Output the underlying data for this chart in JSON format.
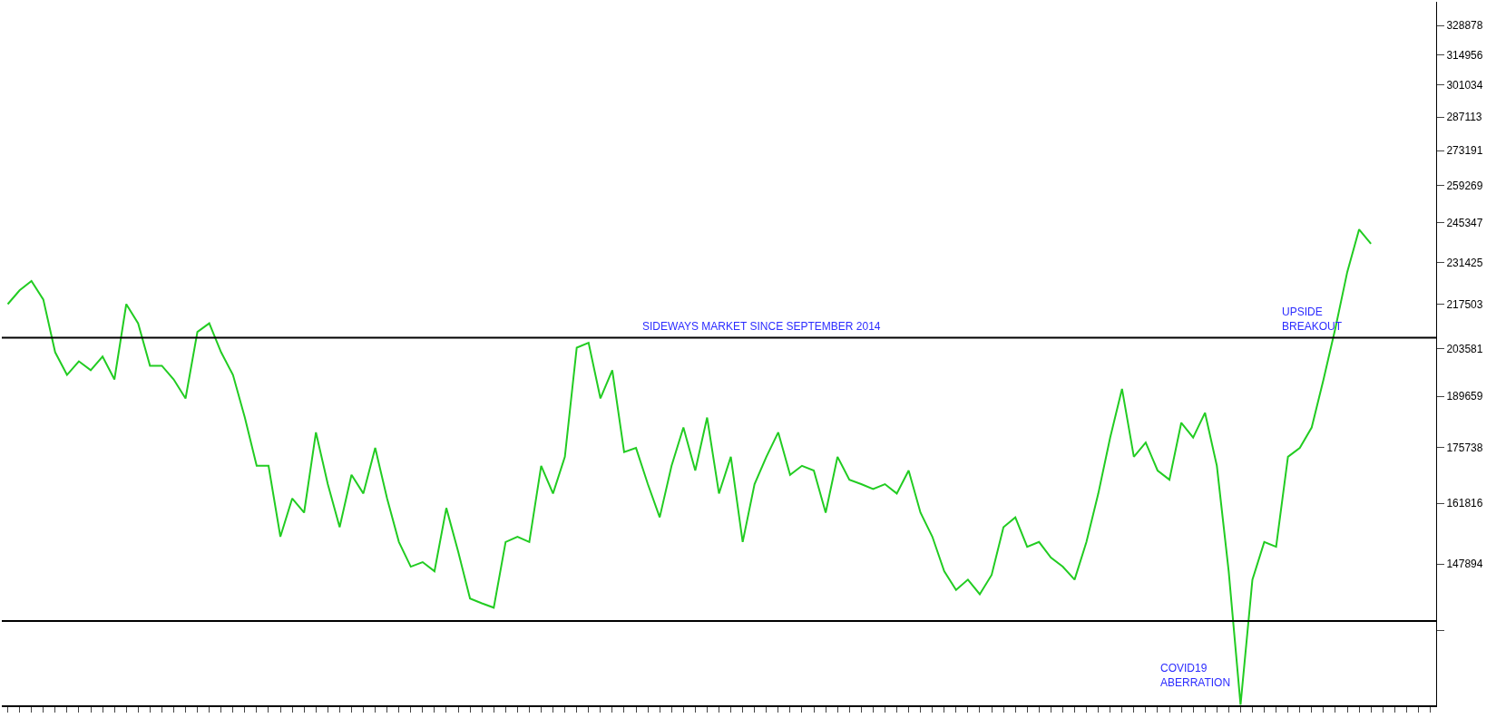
{
  "chart_data": {
    "type": "line",
    "log": true,
    "tick_labels": "y",
    "marker": "none",
    "categories": [
      null,
      null,
      null,
      null,
      null,
      null,
      null,
      null,
      null,
      null,
      null,
      null,
      null,
      null,
      null,
      null,
      null,
      null,
      null,
      null,
      null,
      null,
      null,
      null,
      null,
      null,
      null,
      null,
      null,
      null,
      null,
      null,
      null,
      null,
      null,
      null,
      null,
      null,
      null,
      null,
      null,
      null,
      null,
      null,
      null,
      null,
      null,
      null,
      null,
      null,
      null,
      null,
      null,
      null,
      null,
      null,
      null,
      null,
      null,
      null,
      null,
      null,
      null,
      null,
      null,
      null,
      null,
      null,
      null,
      null,
      null,
      null,
      null,
      null,
      null,
      null,
      null,
      null,
      null,
      null,
      null,
      null,
      null,
      null,
      null,
      null,
      null,
      null,
      null,
      null,
      null,
      null,
      null,
      null,
      null,
      null,
      null,
      null,
      null,
      null,
      null,
      null,
      null,
      null,
      null,
      null,
      null,
      null,
      null,
      null,
      null,
      null,
      null,
      null,
      null,
      null,
      null,
      null,
      null,
      null,
      null
    ],
    "series": [
      {
        "color": "#22cc22",
        "values": [
          217500,
          222000,
          225100,
          219000,
          202500,
          195800,
          199800,
          197200,
          201200,
          194500,
          217500,
          211400,
          198500,
          198500,
          194500,
          189100,
          208700,
          211400,
          202500,
          195800,
          183800,
          171100,
          171100,
          154000,
          163000,
          159600,
          179800,
          166500,
          156200,
          168800,
          164200,
          175700,
          163000,
          152800,
          147300,
          148300,
          146300,
          160700,
          150600,
          140500,
          139500,
          138600,
          152800,
          154000,
          152800,
          171100,
          164200,
          173400,
          203900,
          205400,
          189100,
          197200,
          174600,
          175700,
          166500,
          158500,
          171100,
          181100,
          169900,
          183800,
          164200,
          173400,
          152800,
          166500,
          173400,
          179800,
          168800,
          171100,
          169900,
          159600,
          173400,
          167600,
          166500,
          165300,
          166500,
          164200,
          169900,
          159600,
          154000,
          146300,
          142300,
          144500,
          141400,
          145500,
          156200,
          158500,
          151700,
          152800,
          149300,
          147300,
          144500,
          152800,
          164200,
          178400,
          191800,
          173400,
          177100,
          169900,
          167600,
          182400,
          178400,
          185100,
          171100,
          146300,
          120000,
          144500,
          152800,
          151700,
          173400,
          175700,
          181100,
          194500,
          209900,
          228100,
          243000,
          237900,
          null,
          null,
          null,
          null,
          null
        ]
      }
    ],
    "ylim": [
      119900,
      340700
    ],
    "yticks": [
      {
        "value": 133972,
        "label": null
      },
      147894,
      161816,
      175738,
      189659,
      203581,
      217503,
      231425,
      245347,
      259269,
      273191,
      287113,
      301034,
      314956,
      328878
    ],
    "ref_lines": [
      {
        "axis": "y",
        "value": 206900,
        "color": "#000000"
      },
      {
        "axis": "y",
        "value": 135900,
        "color": "#000000"
      }
    ],
    "annotations": [
      "SIDEWAYS MARKET SINCE SEPTEMBER 2014",
      "UPSIDE\nBREAKOUT",
      "COVID19\nABERRATION"
    ]
  }
}
